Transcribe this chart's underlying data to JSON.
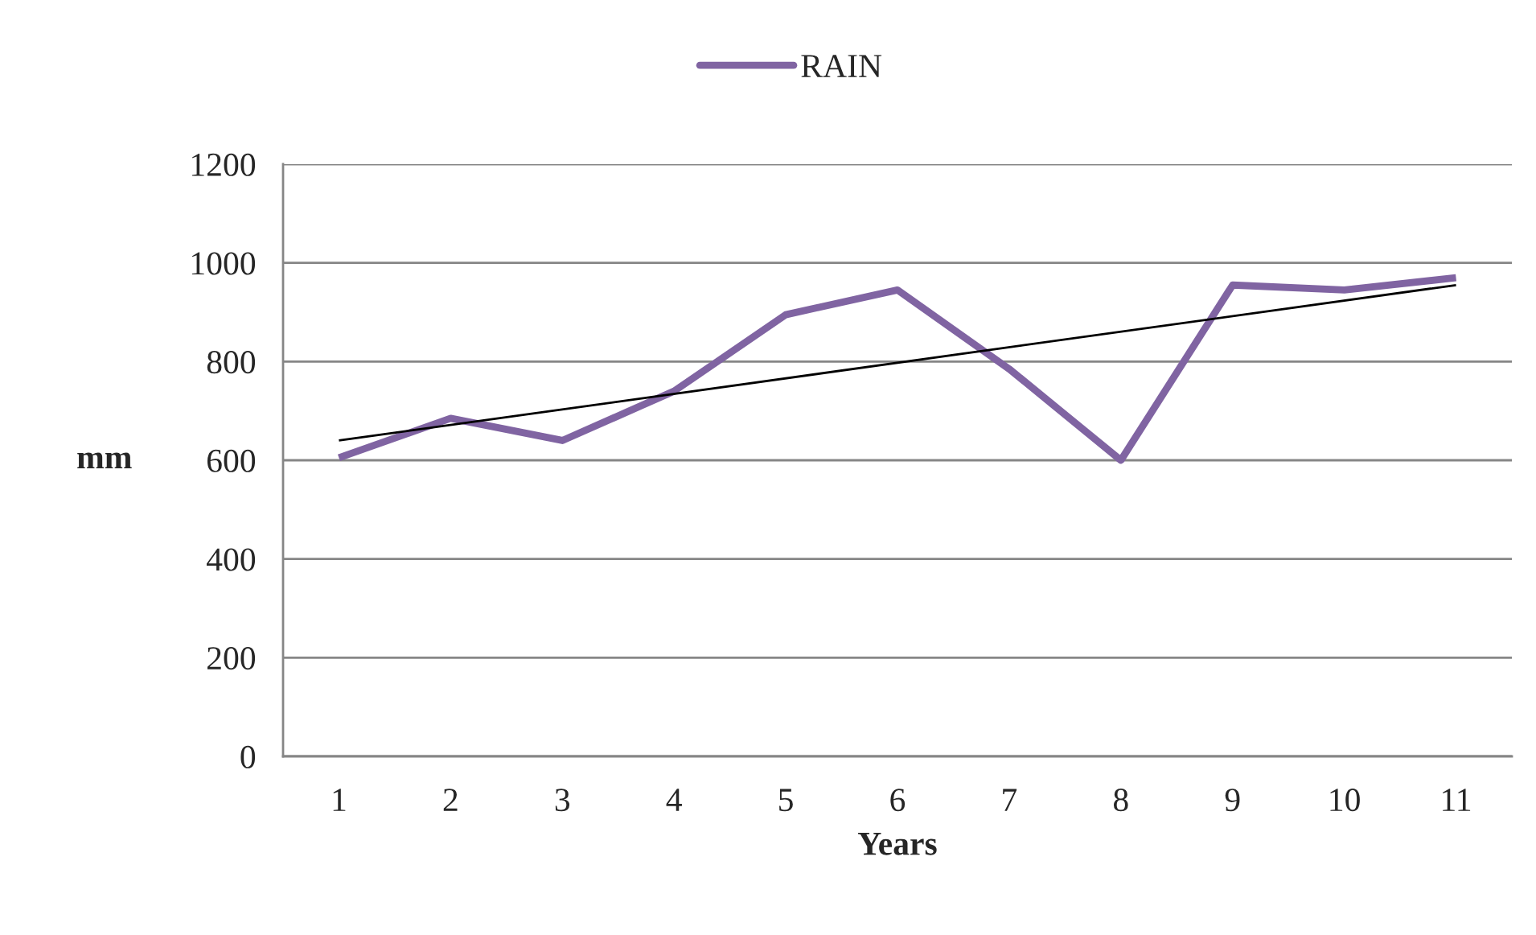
{
  "chart_data": {
    "type": "line",
    "x": [
      1,
      2,
      3,
      4,
      5,
      6,
      7,
      8,
      9,
      10,
      11
    ],
    "series": [
      {
        "name": "RAIN",
        "color": "#8064a2",
        "values": [
          605,
          685,
          640,
          740,
          895,
          945,
          785,
          600,
          955,
          945,
          970
        ]
      },
      {
        "type": "line",
        "color": "#000000",
        "x": [
          1,
          11
        ],
        "values": [
          640,
          955
        ]
      }
    ],
    "xlabel": "Years",
    "ylabel": "mm",
    "xlim": [
      0.5,
      11.5
    ],
    "xticks": [
      1,
      2,
      3,
      4,
      5,
      6,
      7,
      8,
      9,
      10,
      11
    ],
    "ylim": [
      0,
      1200
    ],
    "yticks": [
      0,
      200,
      400,
      600,
      800,
      1000,
      1200
    ],
    "grid": "y",
    "legend": "top",
    "marker": "none",
    "line_style": "solid"
  }
}
